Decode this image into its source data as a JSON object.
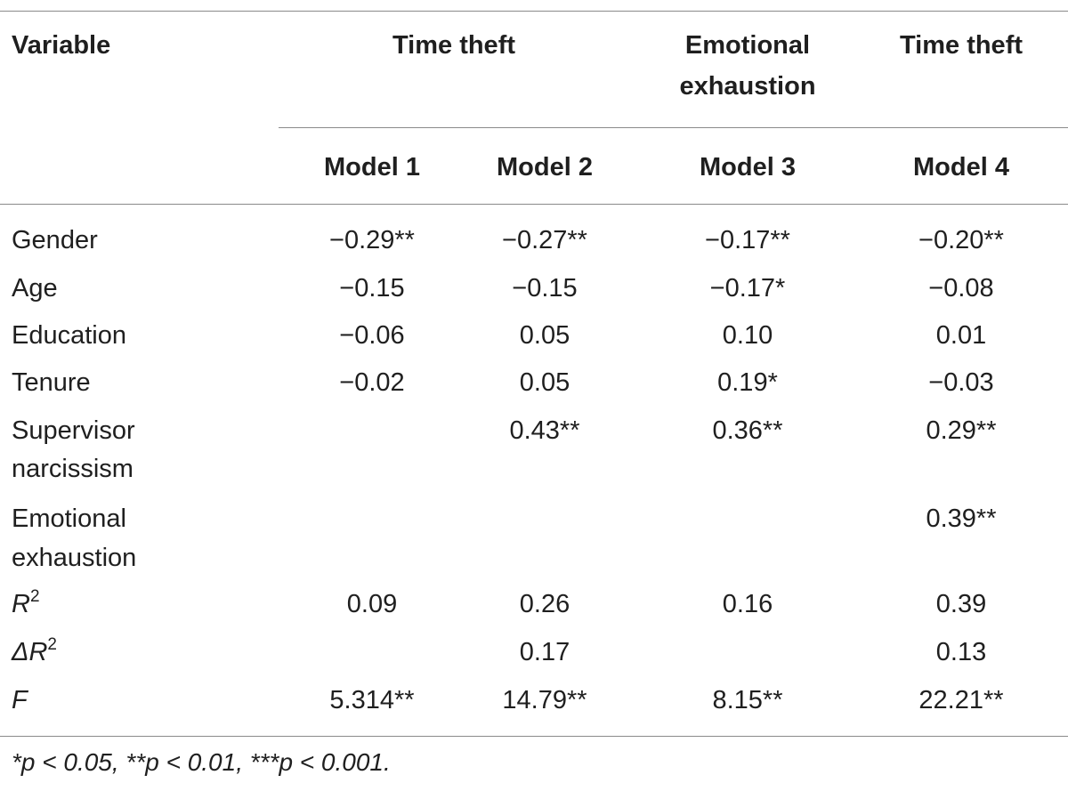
{
  "table": {
    "header": {
      "variable": "Variable",
      "group1": "Time theft",
      "group2_line1": "Emotional",
      "group2_line2": "exhaustion",
      "group3": "Time theft",
      "models": [
        "Model 1",
        "Model 2",
        "Model 3",
        "Model 4"
      ]
    },
    "rows": [
      {
        "label": [
          "Gender"
        ],
        "cells": [
          "−0.29**",
          "−0.27**",
          "−0.17**",
          "−0.20**"
        ]
      },
      {
        "label": [
          "Age"
        ],
        "cells": [
          "−0.15",
          "−0.15",
          "−0.17*",
          "−0.08"
        ]
      },
      {
        "label": [
          "Education"
        ],
        "cells": [
          "−0.06",
          "0.05",
          "0.10",
          "0.01"
        ]
      },
      {
        "label": [
          "Tenure"
        ],
        "cells": [
          "−0.02",
          "0.05",
          "0.19*",
          "−0.03"
        ]
      },
      {
        "label": [
          "Supervisor",
          "narcissism"
        ],
        "cells": [
          "",
          "0.43**",
          "0.36**",
          "0.29**"
        ]
      },
      {
        "label": [
          "Emotional",
          "exhaustion"
        ],
        "cells": [
          "",
          "",
          "",
          "0.39**"
        ]
      },
      {
        "label": [
          "R",
          "2"
        ],
        "cells": [
          "0.09",
          "0.26",
          "0.16",
          "0.39"
        ]
      },
      {
        "label": [
          "ΔR",
          "2"
        ],
        "cells": [
          "",
          "0.17",
          "",
          "0.13"
        ]
      },
      {
        "label": [
          "F"
        ],
        "cells": [
          "5.314**",
          "14.79**",
          "8.15**",
          "22.21**"
        ]
      }
    ],
    "footnote": "*p < 0.05, **p < 0.01, ***p < 0.001."
  }
}
